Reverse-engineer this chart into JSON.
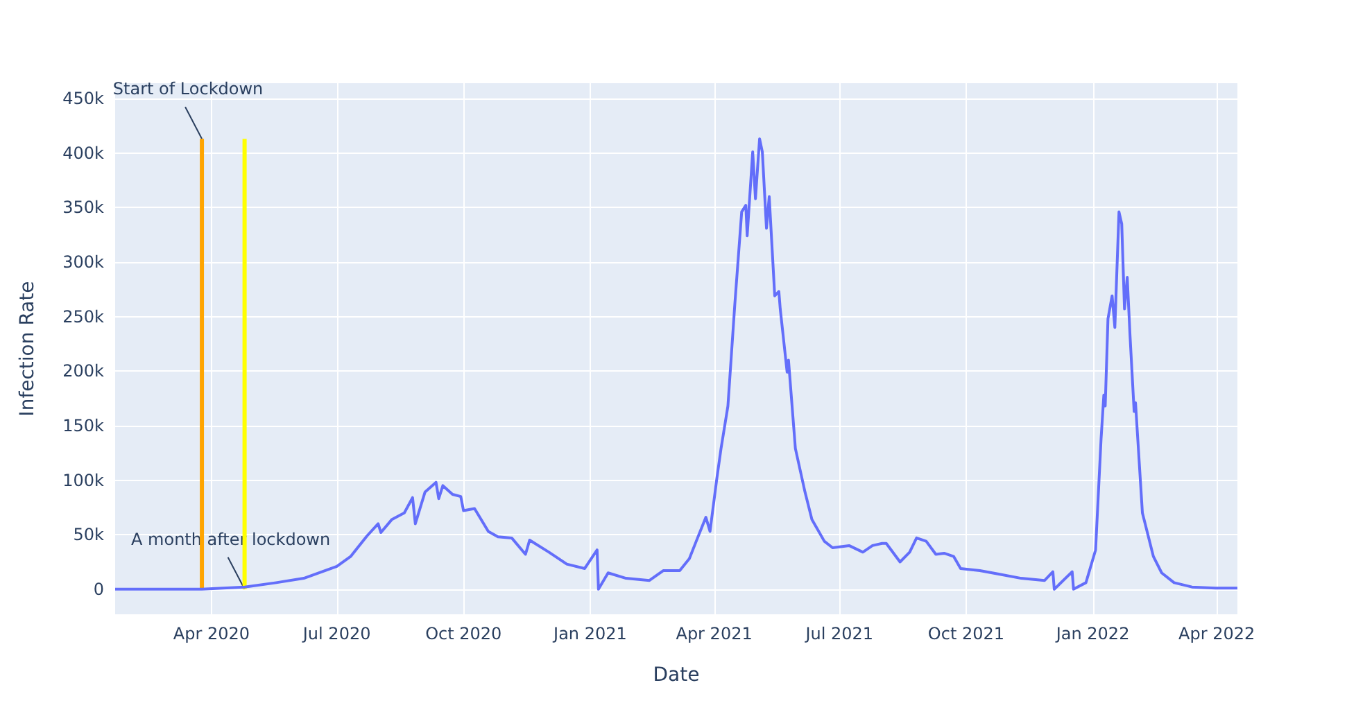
{
  "chart_data": {
    "type": "line",
    "xlabel": "Date",
    "ylabel": "Infection Rate",
    "x": [
      "2020-01-22",
      "2020-03-25",
      "2020-04-25",
      "2020-05-18",
      "2020-06-07",
      "2020-07-01",
      "2020-07-11",
      "2020-07-23",
      "2020-07-31",
      "2020-08-02",
      "2020-08-10",
      "2020-08-19",
      "2020-08-25",
      "2020-08-27",
      "2020-09-03",
      "2020-09-11",
      "2020-09-13",
      "2020-09-16",
      "2020-09-23",
      "2020-09-29",
      "2020-10-01",
      "2020-10-09",
      "2020-10-19",
      "2020-10-26",
      "2020-11-05",
      "2020-11-15",
      "2020-11-18",
      "2020-12-02",
      "2020-12-15",
      "2020-12-28",
      "2021-01-06",
      "2021-01-07",
      "2021-01-14",
      "2021-01-27",
      "2021-02-13",
      "2021-02-23",
      "2021-03-07",
      "2021-03-14",
      "2021-03-19",
      "2021-03-26",
      "2021-03-29",
      "2021-04-03",
      "2021-04-06",
      "2021-04-11",
      "2021-04-16",
      "2021-04-21",
      "2021-04-24",
      "2021-04-25",
      "2021-04-29",
      "2021-05-01",
      "2021-05-04",
      "2021-05-06",
      "2021-05-09",
      "2021-05-11",
      "2021-05-15",
      "2021-05-18",
      "2021-05-19",
      "2021-05-24",
      "2021-05-25",
      "2021-05-30",
      "2021-06-06",
      "2021-06-11",
      "2021-06-20",
      "2021-06-26",
      "2021-07-08",
      "2021-07-18",
      "2021-07-25",
      "2021-08-01",
      "2021-08-04",
      "2021-08-14",
      "2021-08-21",
      "2021-08-26",
      "2021-09-02",
      "2021-09-09",
      "2021-09-15",
      "2021-09-22",
      "2021-09-27",
      "2021-10-11",
      "2021-10-24",
      "2021-11-10",
      "2021-11-27",
      "2021-12-03",
      "2021-12-04",
      "2021-12-17",
      "2021-12-18",
      "2021-12-27",
      "2022-01-03",
      "2022-01-07",
      "2022-01-09",
      "2022-01-10",
      "2022-01-12",
      "2022-01-15",
      "2022-01-17",
      "2022-01-20",
      "2022-01-22",
      "2022-01-24",
      "2022-01-26",
      "2022-01-28",
      "2022-01-31",
      "2022-02-01",
      "2022-02-06",
      "2022-02-14",
      "2022-02-20",
      "2022-03-01",
      "2022-03-14",
      "2022-03-31",
      "2022-04-16"
    ],
    "series": [
      {
        "color": "#636efa",
        "values": [
          0,
          0,
          2000,
          6000,
          10000,
          21000,
          30000,
          49000,
          60000,
          52000,
          64000,
          70000,
          84000,
          60000,
          89000,
          98000,
          83000,
          95000,
          87000,
          85000,
          72000,
          74000,
          53000,
          48000,
          47000,
          32000,
          45000,
          34000,
          23000,
          19000,
          36000,
          0,
          15000,
          10000,
          8000,
          17000,
          17000,
          28000,
          44000,
          66000,
          53000,
          102000,
          129000,
          168000,
          261000,
          346000,
          352000,
          324000,
          401000,
          358000,
          413000,
          401000,
          331000,
          360000,
          269000,
          273000,
          257000,
          199000,
          210000,
          129000,
          89000,
          64000,
          44000,
          38000,
          40000,
          34000,
          40000,
          42000,
          42000,
          25000,
          34000,
          47000,
          44000,
          32000,
          33000,
          30000,
          19000,
          17000,
          14000,
          10000,
          8000,
          16000,
          0,
          16000,
          0,
          6000,
          36000,
          138000,
          178000,
          168000,
          248000,
          269000,
          240000,
          346000,
          335000,
          257000,
          286000,
          233000,
          163000,
          171000,
          70000,
          30000,
          15000,
          6000,
          2000,
          1000,
          1000
        ]
      }
    ],
    "xlim": [
      "2020-01-22",
      "2022-04-16"
    ],
    "xticks": [
      {
        "value": "2020-04-01",
        "label": "Apr 2020"
      },
      {
        "value": "2020-07-01",
        "label": "Jul 2020"
      },
      {
        "value": "2020-10-01",
        "label": "Oct 2020"
      },
      {
        "value": "2021-01-01",
        "label": "Jan 2021"
      },
      {
        "value": "2021-04-01",
        "label": "Apr 2021"
      },
      {
        "value": "2021-07-01",
        "label": "Jul 2021"
      },
      {
        "value": "2021-10-01",
        "label": "Oct 2021"
      },
      {
        "value": "2022-01-01",
        "label": "Jan 2022"
      },
      {
        "value": "2022-04-01",
        "label": "Apr 2022"
      }
    ],
    "ylim": [
      -23000,
      464000
    ],
    "yticks": [
      0,
      {
        "value": 50000,
        "label": "50k"
      },
      {
        "value": 100000,
        "label": "100k"
      },
      {
        "value": 150000,
        "label": "150k"
      },
      {
        "value": 200000,
        "label": "200k"
      },
      {
        "value": 250000,
        "label": "250k"
      },
      {
        "value": 300000,
        "label": "300k"
      },
      {
        "value": 350000,
        "label": "350k"
      },
      {
        "value": 400000,
        "label": "400k"
      },
      {
        "value": 450000,
        "label": "450k"
      }
    ],
    "ref_lines": [
      {
        "axis": "x",
        "value": "2020-03-25",
        "color": "#ffa500"
      },
      {
        "axis": "x",
        "value": "2020-04-25",
        "color": "#ffff00"
      }
    ],
    "annotations": [
      {
        "text": "Start of Lockdown",
        "x": "2020-03-25",
        "y": 413000
      },
      {
        "text": "A month after lockdown",
        "x": "2020-04-25",
        "y": 0
      }
    ],
    "grid": true,
    "marker": "none",
    "line_style": "solid"
  }
}
